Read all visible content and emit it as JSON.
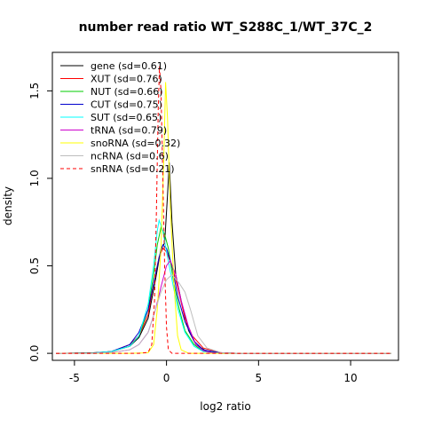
{
  "chart_data": {
    "type": "line",
    "title": "number read ratio WT_S288C_1/WT_37C_2",
    "xlabel": "log2 ratio",
    "ylabel": "density",
    "xlim": [
      -6.2,
      12.6
    ],
    "ylim": [
      -0.04,
      1.72
    ],
    "x_ticks": [
      -5,
      0,
      5,
      10
    ],
    "x_tick_labels": [
      "-5",
      "0",
      "5",
      "10"
    ],
    "y_ticks": [
      0.0,
      0.5,
      1.0,
      1.5
    ],
    "y_tick_labels": [
      "0.0",
      "0.5",
      "1.0",
      "1.5"
    ],
    "grid": false,
    "legend_position": "top-left",
    "series": [
      {
        "name": "gene (sd=0.61)",
        "color": "#000000",
        "dash": "solid",
        "points": [
          [
            -6,
            0
          ],
          [
            -4,
            0.003
          ],
          [
            -3,
            0.01
          ],
          [
            -2,
            0.04
          ],
          [
            -1.5,
            0.09
          ],
          [
            -1,
            0.2
          ],
          [
            -0.6,
            0.42
          ],
          [
            -0.3,
            0.6
          ],
          [
            -0.1,
            0.63
          ],
          [
            0.05,
            0.9
          ],
          [
            0.15,
            1.09
          ],
          [
            0.3,
            0.75
          ],
          [
            0.5,
            0.45
          ],
          [
            0.8,
            0.3
          ],
          [
            1.2,
            0.13
          ],
          [
            1.6,
            0.05
          ],
          [
            2.2,
            0.01
          ],
          [
            3,
            0.002
          ],
          [
            4,
            0
          ],
          [
            12.2,
            0
          ]
        ]
      },
      {
        "name": "XUT (sd=0.76)",
        "color": "#ff0000",
        "dash": "solid",
        "points": [
          [
            -6,
            0
          ],
          [
            -4,
            0.002
          ],
          [
            -3,
            0.01
          ],
          [
            -2,
            0.05
          ],
          [
            -1.5,
            0.1
          ],
          [
            -1,
            0.22
          ],
          [
            -0.7,
            0.4
          ],
          [
            -0.4,
            0.55
          ],
          [
            -0.2,
            0.6
          ],
          [
            0,
            0.58
          ],
          [
            0.3,
            0.5
          ],
          [
            0.6,
            0.38
          ],
          [
            1,
            0.2
          ],
          [
            1.4,
            0.1
          ],
          [
            2,
            0.03
          ],
          [
            3,
            0.003
          ],
          [
            4,
            0
          ],
          [
            12.2,
            0
          ]
        ]
      },
      {
        "name": "NUT (sd=0.66)",
        "color": "#00cd00",
        "dash": "solid",
        "points": [
          [
            -6,
            0
          ],
          [
            -4,
            0.002
          ],
          [
            -3,
            0.01
          ],
          [
            -2,
            0.04
          ],
          [
            -1.5,
            0.1
          ],
          [
            -1,
            0.25
          ],
          [
            -0.7,
            0.45
          ],
          [
            -0.5,
            0.62
          ],
          [
            -0.3,
            0.72
          ],
          [
            -0.1,
            0.68
          ],
          [
            0.1,
            0.6
          ],
          [
            0.4,
            0.4
          ],
          [
            0.7,
            0.25
          ],
          [
            1,
            0.13
          ],
          [
            1.5,
            0.05
          ],
          [
            2,
            0.01
          ],
          [
            3,
            0
          ],
          [
            12.2,
            0
          ]
        ]
      },
      {
        "name": "CUT (sd=0.75)",
        "color": "#0000cd",
        "dash": "solid",
        "points": [
          [
            -6,
            0
          ],
          [
            -4,
            0.002
          ],
          [
            -3,
            0.01
          ],
          [
            -2,
            0.05
          ],
          [
            -1.5,
            0.12
          ],
          [
            -1,
            0.25
          ],
          [
            -0.7,
            0.4
          ],
          [
            -0.4,
            0.55
          ],
          [
            -0.2,
            0.62
          ],
          [
            0,
            0.6
          ],
          [
            0.3,
            0.5
          ],
          [
            0.6,
            0.33
          ],
          [
            1,
            0.18
          ],
          [
            1.5,
            0.07
          ],
          [
            2,
            0.02
          ],
          [
            3,
            0.002
          ],
          [
            4,
            0
          ],
          [
            12.2,
            0
          ]
        ]
      },
      {
        "name": "SUT (sd=0.65)",
        "color": "#00ffff",
        "dash": "solid",
        "points": [
          [
            -6,
            0
          ],
          [
            -4,
            0.002
          ],
          [
            -3,
            0.01
          ],
          [
            -2,
            0.04
          ],
          [
            -1.5,
            0.1
          ],
          [
            -1,
            0.28
          ],
          [
            -0.7,
            0.5
          ],
          [
            -0.5,
            0.7
          ],
          [
            -0.4,
            0.76
          ],
          [
            -0.2,
            0.7
          ],
          [
            0,
            0.58
          ],
          [
            0.3,
            0.42
          ],
          [
            0.6,
            0.26
          ],
          [
            1,
            0.12
          ],
          [
            1.5,
            0.04
          ],
          [
            2,
            0.01
          ],
          [
            3,
            0
          ],
          [
            12.2,
            0
          ]
        ]
      },
      {
        "name": "tRNA (sd=0.79)",
        "color": "#cd00cd",
        "dash": "solid",
        "points": [
          [
            -6,
            0
          ],
          [
            -4,
            0
          ],
          [
            -3,
            0.005
          ],
          [
            -2,
            0.02
          ],
          [
            -1.5,
            0.05
          ],
          [
            -1,
            0.12
          ],
          [
            -0.6,
            0.25
          ],
          [
            -0.3,
            0.38
          ],
          [
            0,
            0.5
          ],
          [
            0.2,
            0.53
          ],
          [
            0.5,
            0.45
          ],
          [
            0.8,
            0.3
          ],
          [
            1.2,
            0.15
          ],
          [
            1.6,
            0.05
          ],
          [
            2,
            0.015
          ],
          [
            2.5,
            0.003
          ],
          [
            3,
            0
          ],
          [
            12.2,
            0
          ]
        ]
      },
      {
        "name": "snoRNA (sd=0.32)",
        "color": "#ffff00",
        "dash": "solid",
        "points": [
          [
            -6,
            0
          ],
          [
            -2,
            0
          ],
          [
            -1,
            0.003
          ],
          [
            -0.7,
            0.05
          ],
          [
            -0.5,
            0.25
          ],
          [
            -0.3,
            0.6
          ],
          [
            -0.15,
            1.1
          ],
          [
            -0.05,
            1.55
          ],
          [
            0.05,
            1.35
          ],
          [
            0.2,
            0.85
          ],
          [
            0.4,
            0.4
          ],
          [
            0.6,
            0.1
          ],
          [
            0.8,
            0.02
          ],
          [
            1.2,
            0
          ],
          [
            12.2,
            0
          ]
        ]
      },
      {
        "name": "ncRNA (sd=0.6)",
        "color": "#bebebe",
        "dash": "solid",
        "points": [
          [
            -6,
            0
          ],
          [
            -4,
            0
          ],
          [
            -3,
            0.005
          ],
          [
            -2,
            0.02
          ],
          [
            -1.5,
            0.05
          ],
          [
            -1,
            0.12
          ],
          [
            -0.6,
            0.25
          ],
          [
            -0.3,
            0.35
          ],
          [
            0,
            0.42
          ],
          [
            0.3,
            0.45
          ],
          [
            0.7,
            0.4
          ],
          [
            1,
            0.35
          ],
          [
            1.3,
            0.25
          ],
          [
            1.7,
            0.1
          ],
          [
            2.2,
            0.03
          ],
          [
            3,
            0.003
          ],
          [
            4,
            0
          ],
          [
            12.2,
            0
          ]
        ]
      },
      {
        "name": "snRNA (sd=0.21)",
        "color": "#ff0000",
        "dash": "dashed",
        "points": [
          [
            -6,
            0
          ],
          [
            -1.5,
            0
          ],
          [
            -1,
            0.005
          ],
          [
            -0.8,
            0.05
          ],
          [
            -0.65,
            0.3
          ],
          [
            -0.55,
            0.8
          ],
          [
            -0.45,
            1.4
          ],
          [
            -0.38,
            1.64
          ],
          [
            -0.3,
            1.5
          ],
          [
            -0.2,
            1.0
          ],
          [
            -0.1,
            0.5
          ],
          [
            0,
            0.15
          ],
          [
            0.1,
            0.02
          ],
          [
            0.3,
            0
          ],
          [
            12.2,
            0
          ]
        ]
      }
    ]
  }
}
